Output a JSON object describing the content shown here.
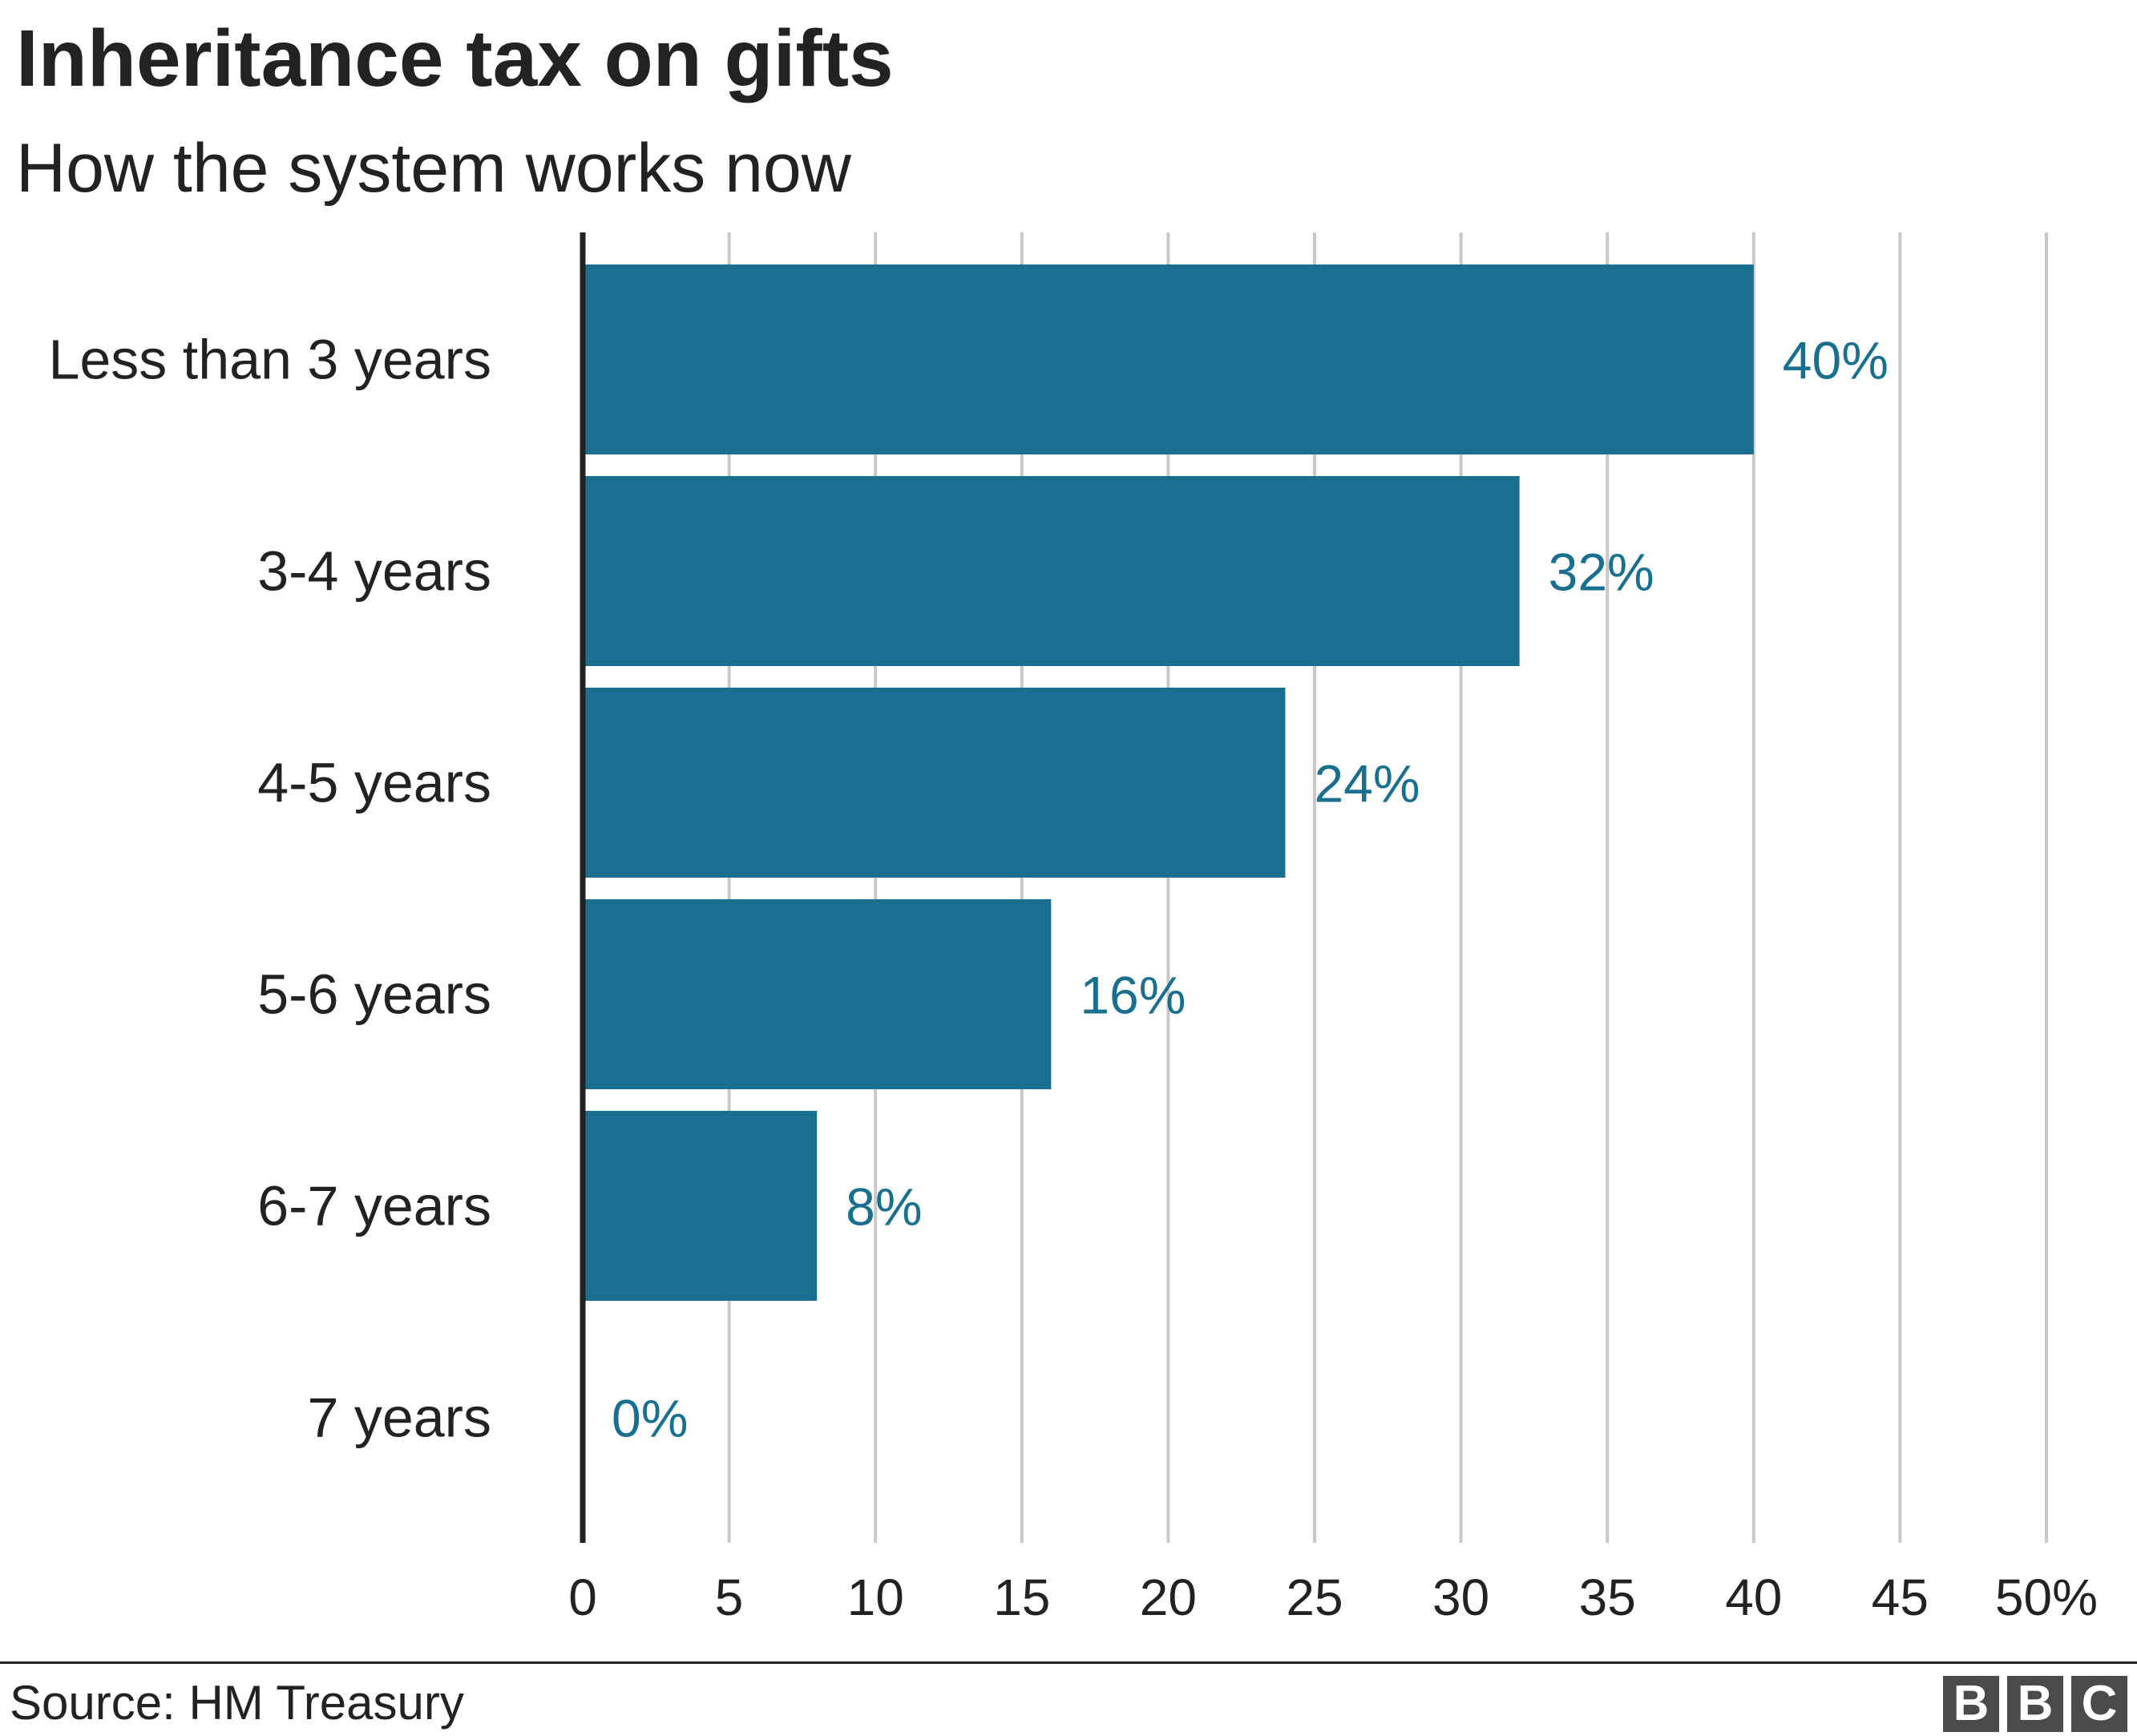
{
  "header": {
    "title": "Inheritance tax on gifts",
    "subtitle": "How the system works now"
  },
  "footer": {
    "source": "Source: HM Treasury",
    "logo_letters": [
      "B",
      "B",
      "C"
    ]
  },
  "colors": {
    "bar": "#186f8f",
    "value_label": "#186f8f",
    "gridline": "#c8c8c8",
    "axis": "#222222",
    "text": "#222222",
    "logo_block": "#4a4a4a"
  },
  "chart_data": {
    "type": "bar",
    "orientation": "horizontal",
    "title": "Inheritance tax on gifts",
    "subtitle": "How the system works now",
    "categories": [
      "Less than 3 years",
      "3-4 years",
      "4-5 years",
      "5-6 years",
      "6-7 years",
      "7 years"
    ],
    "values": [
      40,
      32,
      24,
      16,
      8,
      0
    ],
    "value_labels": [
      "40%",
      "32%",
      "24%",
      "16%",
      "8%",
      "0%"
    ],
    "xlim": [
      0,
      50
    ],
    "x_ticks": [
      0,
      5,
      10,
      15,
      20,
      25,
      30,
      35,
      40,
      45,
      50
    ],
    "x_tick_labels": [
      "0",
      "5",
      "10",
      "15",
      "20",
      "25",
      "30",
      "35",
      "40",
      "45",
      "50%"
    ],
    "grid": true,
    "legend": "none"
  }
}
